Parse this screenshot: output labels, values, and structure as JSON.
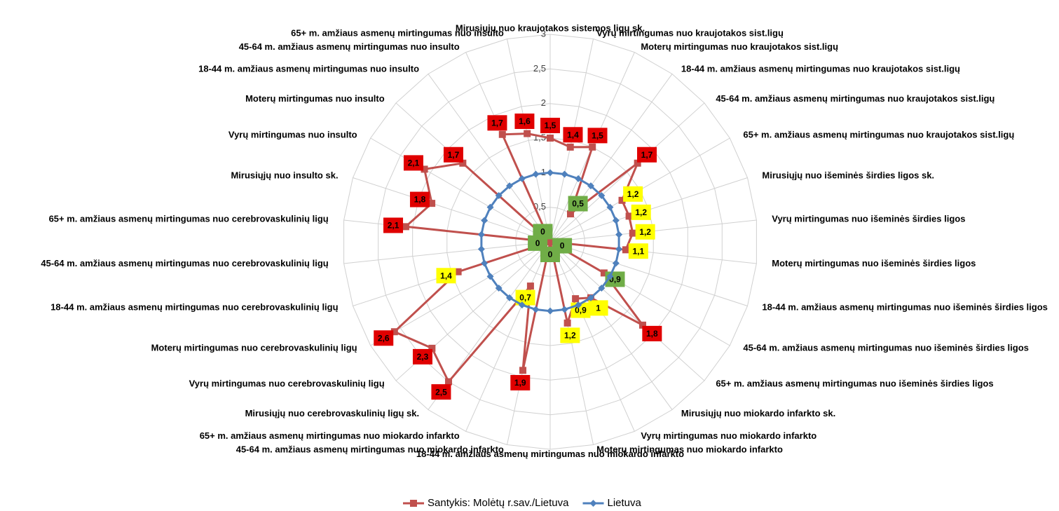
{
  "chart_data": {
    "type": "radar",
    "categories": [
      "Mirusiųjų nuo kraujotakos sistemos ligų sk.",
      "Vyrų mirtingumas nuo kraujotakos sist.ligų",
      "Moterų mirtingumas nuo kraujotakos sist.ligų",
      "18-44 m. amžiaus asmenų mirtingumas nuo kraujotakos sist.ligų",
      "45-64 m. amžiaus asmenų mirtingumas nuo kraujotakos sist.ligų",
      "65+ m. amžiaus asmenų mirtingumas nuo kraujotakos sist.ligų",
      "Mirusiųjų nuo išeminės širdies ligos sk.",
      "Vyrų mirtingumas nuo išeminės širdies ligos",
      "Moterų mirtingumas nuo išeminės širdies ligos",
      "18-44 m. amžiaus asmenų mirtingumas nuo išeminės širdies ligos",
      "45-64 m. amžiaus asmenų mirtingumas nuo išeminės širdies ligos",
      "65+ m. amžiaus asmenų mirtingumas nuo išeminės širdies ligos",
      "Mirusiųjų nuo miokardo infarkto sk.",
      "Vyrų mirtingumas nuo miokardo infarkto",
      "Moterų mirtingumas nuo miokardo infarkto",
      "18-44 m. amžiaus asmenų mirtingumas nuo miokardo infarkto",
      "45-64 m. amžiaus asmenų mirtingumas nuo miokardo infarkto",
      "65+ m. amžiaus asmenų mirtingumas nuo miokardo infarkto",
      "Mirusiųjų nuo cerebrovaskulinių ligų sk.",
      "Vyrų mirtingumas nuo cerebrovaskulinių ligų",
      "Moterų mirtingumas nuo cerebrovaskulinių ligų",
      "18-44 m. amžiaus asmenų mirtingumas nuo cerebrovaskulinių ligų",
      "45-64 m. amžiaus asmenų mirtingumas nuo cerebrovaskulinių ligų",
      "65+ m. amžiaus asmenų mirtingumas nuo cerebrovaskulinių ligų",
      "Mirusiųjų nuo insulto sk.",
      "Vyrų mirtingumas nuo insulto",
      "Moterų mirtingumas nuo insulto",
      "18-44 m. amžiaus asmenų mirtingumas nuo insulto",
      "45-64 m. amžiaus asmenų mirtingumas nuo insulto",
      "65+ m. amžiaus asmenų mirtingumas nuo insulto"
    ],
    "series": [
      {
        "name": "Santykis: Molėtų r.sav./Lietuva",
        "color": "#c0504d",
        "marker": "square",
        "values": [
          1.5,
          1.4,
          1.5,
          0.5,
          1.7,
          1.2,
          1.2,
          1.2,
          1.1,
          0,
          0.9,
          1.8,
          1,
          0.9,
          1.2,
          0,
          1.9,
          0.7,
          2.5,
          2.3,
          2.6,
          1.4,
          0,
          2.1,
          1.8,
          2.1,
          1.7,
          0,
          1.7,
          1.6
        ],
        "value_labels": [
          "1,5",
          "1,4",
          "1,5",
          "0,5",
          "1,7",
          "1,2",
          "1,2",
          "1,2",
          "1,1",
          "0",
          "0,9",
          "1,8",
          "1",
          "0,9",
          "1,2",
          "0",
          "1,9",
          "0,7",
          "2,5",
          "2,3",
          "2,6",
          "1,4",
          "0",
          "2,1",
          "1,8",
          "2,1",
          "1,7",
          "0",
          "1,7",
          "1,6"
        ],
        "value_label_colors": [
          "#e00000",
          "#e00000",
          "#e00000",
          "#70ad47",
          "#e00000",
          "#ffff00",
          "#ffff00",
          "#ffff00",
          "#ffff00",
          "#70ad47",
          "#70ad47",
          "#e00000",
          "#ffff00",
          "#ffff00",
          "#ffff00",
          "#70ad47",
          "#e00000",
          "#ffff00",
          "#e00000",
          "#e00000",
          "#e00000",
          "#ffff00",
          "#70ad47",
          "#e00000",
          "#e00000",
          "#e00000",
          "#e00000",
          "#70ad47",
          "#e00000",
          "#e00000"
        ]
      },
      {
        "name": "Lietuva",
        "color": "#4f81bd",
        "marker": "diamond",
        "values": [
          1,
          1,
          1,
          1,
          1,
          1,
          1,
          1,
          1,
          1,
          1,
          1,
          1,
          1,
          1,
          1,
          1,
          1,
          1,
          1,
          1,
          1,
          1,
          1,
          1,
          1,
          1,
          1,
          1,
          1
        ]
      }
    ],
    "ylim": [
      0,
      3
    ],
    "yticks": [
      0,
      {
        "value": 0.5,
        "label": "0,5"
      },
      1,
      {
        "value": 1.5,
        "label": "1,5"
      },
      2,
      {
        "value": 2.5,
        "label": "2,5"
      },
      3
    ],
    "grid": true,
    "legend": "bottom"
  }
}
